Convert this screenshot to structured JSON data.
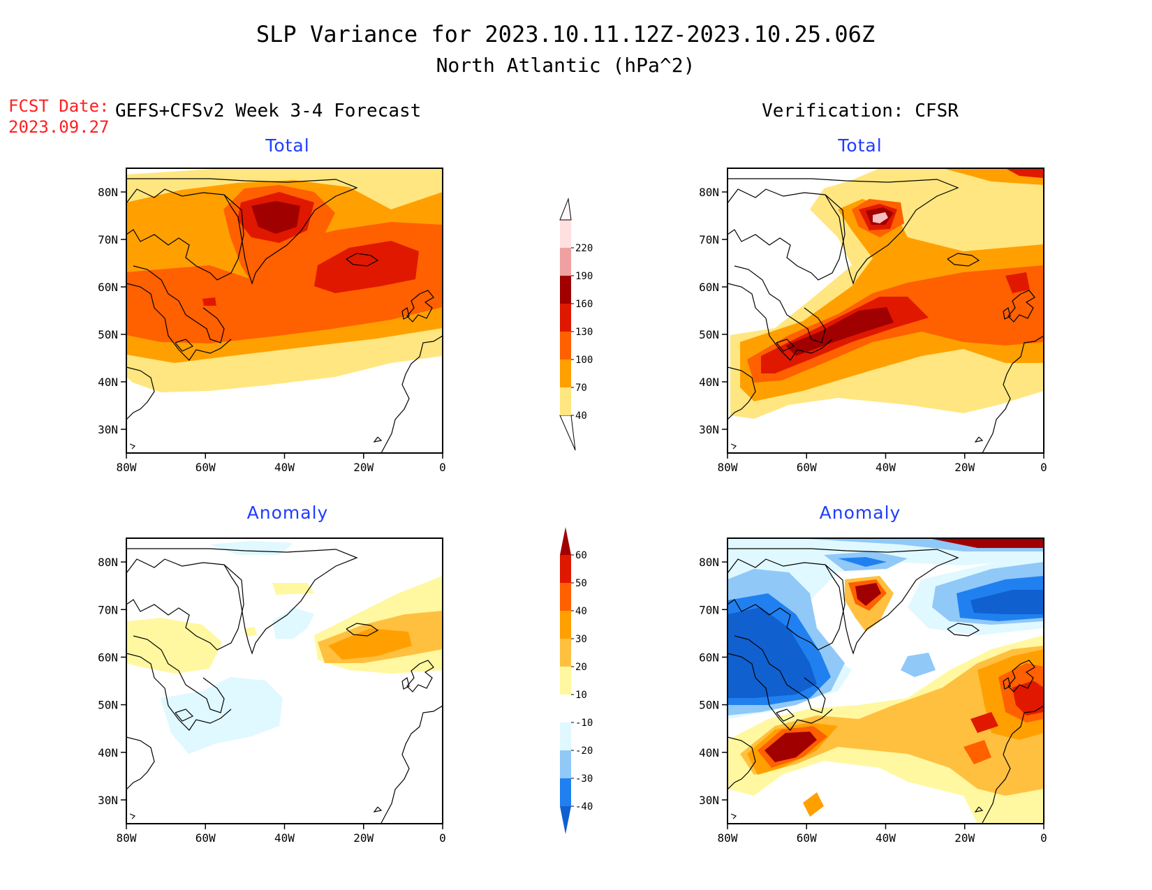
{
  "header": {
    "title": "SLP Variance for 2023.10.11.12Z-2023.10.25.06Z",
    "subtitle": "North Atlantic (hPa^2)",
    "fcst_label": "FCST Date:",
    "fcst_date": "2023.09.27",
    "left_heading": "GEFS+CFSv2 Week 3-4 Forecast",
    "right_heading": "Verification: CFSR"
  },
  "panels": {
    "forecast_total": "Total",
    "forecast_anomaly": "Anomaly",
    "verification_total": "Total",
    "verification_anomaly": "Anomaly"
  },
  "axes": {
    "lat_labels": [
      "80N",
      "70N",
      "60N",
      "50N",
      "40N",
      "30N"
    ],
    "lon_labels": [
      "80W",
      "60W",
      "40W",
      "20W",
      "0"
    ],
    "lat_values": [
      80,
      70,
      60,
      50,
      40,
      30
    ],
    "lon_values": [
      -80,
      -60,
      -40,
      -20,
      0
    ],
    "lat_range": [
      25,
      85
    ],
    "lon_range": [
      -80,
      0
    ]
  },
  "colorbars": {
    "total": {
      "labels": [
        "40",
        "70",
        "100",
        "130",
        "160",
        "190",
        "220"
      ],
      "colors": [
        "#ffe680",
        "#ffa000",
        "#ff6000",
        "#e01800",
        "#a00000",
        "#f0a0a0",
        "#ffe0e0"
      ]
    },
    "anomaly": {
      "labels": [
        "-40",
        "-30",
        "-20",
        "-10",
        "10",
        "20",
        "30",
        "40",
        "50",
        "60"
      ],
      "colors": [
        "#1060d0",
        "#2080f0",
        "#90c8f8",
        "#e0f8ff",
        "#ffffff",
        "#fff8a0",
        "#ffc040",
        "#ffa000",
        "#ff6000",
        "#e01800",
        "#a00000"
      ]
    }
  }
}
